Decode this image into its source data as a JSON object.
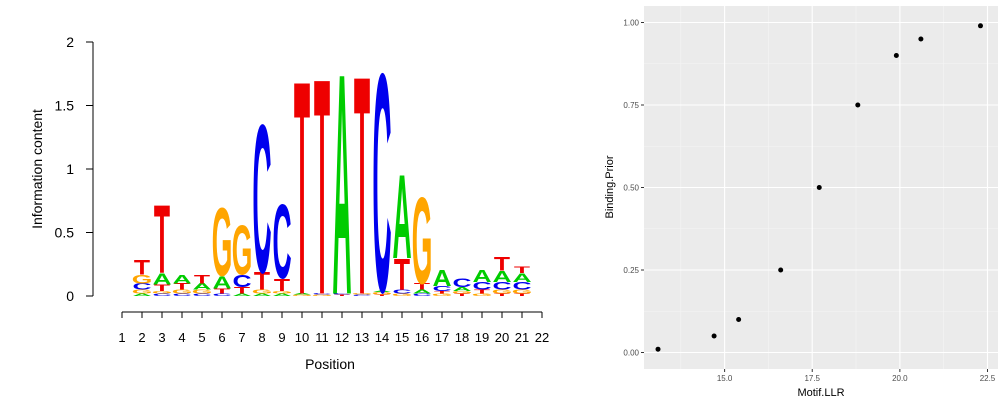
{
  "chart_data": [
    {
      "type": "sequence-logo",
      "xlabel": "Position",
      "ylabel": "Information content",
      "ylim": [
        0,
        2
      ],
      "y_ticks": [
        "0",
        "0.5",
        "1",
        "1.5",
        "2"
      ],
      "x_ticks": [
        "1",
        "2",
        "3",
        "4",
        "5",
        "6",
        "7",
        "8",
        "9",
        "10",
        "11",
        "12",
        "13",
        "14",
        "15",
        "16",
        "17",
        "18",
        "19",
        "20",
        "21",
        "22"
      ],
      "grid": false,
      "colors": {
        "A": "#00cc00",
        "C": "#0000ee",
        "G": "#ffa500",
        "T": "#ee0000"
      },
      "positions": [
        {
          "pos": 2,
          "letters": [
            [
              "A",
              0.02
            ],
            [
              "G",
              0.03
            ],
            [
              "C",
              0.05
            ],
            [
              "G",
              0.07
            ],
            [
              "T",
              0.12
            ]
          ]
        },
        {
          "pos": 3,
          "letters": [
            [
              "C",
              0.02
            ],
            [
              "G",
              0.02
            ],
            [
              "T",
              0.05
            ],
            [
              "A",
              0.09
            ],
            [
              "T",
              0.55
            ]
          ]
        },
        {
          "pos": 4,
          "letters": [
            [
              "C",
              0.02
            ],
            [
              "G",
              0.03
            ],
            [
              "T",
              0.05
            ],
            [
              "A",
              0.07
            ]
          ]
        },
        {
          "pos": 5,
          "letters": [
            [
              "C",
              0.02
            ],
            [
              "G",
              0.03
            ],
            [
              "A",
              0.05
            ],
            [
              "T",
              0.07
            ]
          ]
        },
        {
          "pos": 6,
          "letters": [
            [
              "C",
              0.02
            ],
            [
              "T",
              0.04
            ],
            [
              "A",
              0.1
            ],
            [
              "G",
              0.55
            ]
          ]
        },
        {
          "pos": 7,
          "letters": [
            [
              "A",
              0.02
            ],
            [
              "T",
              0.05
            ],
            [
              "C",
              0.1
            ],
            [
              "G",
              0.4
            ]
          ]
        },
        {
          "pos": 8,
          "letters": [
            [
              "A",
              0.02
            ],
            [
              "G",
              0.03
            ],
            [
              "T",
              0.14
            ],
            [
              "C",
              1.2
            ]
          ]
        },
        {
          "pos": 9,
          "letters": [
            [
              "A",
              0.02
            ],
            [
              "G",
              0.02
            ],
            [
              "T",
              0.1
            ],
            [
              "C",
              0.6
            ]
          ]
        },
        {
          "pos": 10,
          "letters": [
            [
              "G",
              0.01
            ],
            [
              "A",
              0.01
            ],
            [
              "T",
              1.73
            ]
          ]
        },
        {
          "pos": 11,
          "letters": [
            [
              "G",
              0.01
            ],
            [
              "C",
              0.01
            ],
            [
              "T",
              1.75
            ]
          ]
        },
        {
          "pos": 12,
          "letters": [
            [
              "T",
              0.01
            ],
            [
              "C",
              0.01
            ],
            [
              "A",
              1.79
            ]
          ]
        },
        {
          "pos": 13,
          "letters": [
            [
              "C",
              0.01
            ],
            [
              "G",
              0.01
            ],
            [
              "T",
              1.77
            ]
          ]
        },
        {
          "pos": 14,
          "letters": [
            [
              "T",
              0.01
            ],
            [
              "G",
              0.02
            ],
            [
              "A",
              0.01
            ],
            [
              "C",
              1.77
            ]
          ]
        },
        {
          "pos": 15,
          "letters": [
            [
              "G",
              0.02
            ],
            [
              "C",
              0.03
            ],
            [
              "T",
              0.25
            ],
            [
              "A",
              0.68
            ]
          ]
        },
        {
          "pos": 16,
          "letters": [
            [
              "C",
              0.02
            ],
            [
              "A",
              0.03
            ],
            [
              "T",
              0.05
            ],
            [
              "G",
              0.7
            ]
          ]
        },
        {
          "pos": 17,
          "letters": [
            [
              "G",
              0.02
            ],
            [
              "T",
              0.02
            ],
            [
              "C",
              0.04
            ],
            [
              "A",
              0.13
            ]
          ]
        },
        {
          "pos": 18,
          "letters": [
            [
              "T",
              0.02
            ],
            [
              "G",
              0.02
            ],
            [
              "A",
              0.03
            ],
            [
              "C",
              0.07
            ]
          ]
        },
        {
          "pos": 19,
          "letters": [
            [
              "G",
              0.02
            ],
            [
              "T",
              0.03
            ],
            [
              "C",
              0.06
            ],
            [
              "A",
              0.1
            ]
          ]
        },
        {
          "pos": 20,
          "letters": [
            [
              "T",
              0.02
            ],
            [
              "G",
              0.03
            ],
            [
              "C",
              0.06
            ],
            [
              "A",
              0.09
            ],
            [
              "T",
              0.11
            ]
          ]
        },
        {
          "pos": 21,
          "letters": [
            [
              "T",
              0.02
            ],
            [
              "G",
              0.03
            ],
            [
              "C",
              0.06
            ],
            [
              "A",
              0.07
            ],
            [
              "T",
              0.05
            ]
          ]
        }
      ]
    },
    {
      "type": "scatter",
      "xlabel": "Motif.LLR",
      "ylabel": "Binding.Prior",
      "xlim": [
        12.7,
        22.8
      ],
      "ylim": [
        -0.05,
        1.05
      ],
      "x_ticks": [
        "15.0",
        "17.5",
        "20.0",
        "22.5"
      ],
      "y_ticks": [
        "0.00",
        "0.25",
        "0.50",
        "0.75",
        "1.00"
      ],
      "grid": true,
      "panel_color": "#ebebeb",
      "x": [
        13.1,
        14.7,
        15.4,
        16.6,
        17.7,
        18.8,
        19.9,
        20.6,
        22.3
      ],
      "y": [
        0.01,
        0.05,
        0.1,
        0.25,
        0.5,
        0.75,
        0.9,
        0.95,
        0.99
      ]
    }
  ]
}
